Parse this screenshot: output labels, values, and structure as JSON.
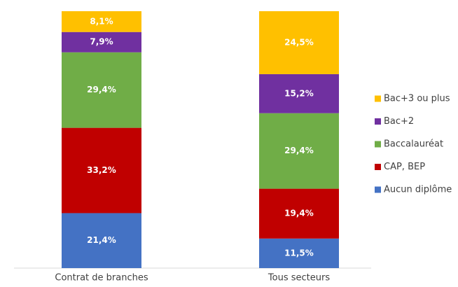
{
  "chart_data": {
    "type": "stacked_bar",
    "categories": [
      "Contrat de branches",
      "Tous secteurs"
    ],
    "series": [
      {
        "name": "Aucun diplôme",
        "color": "#4472c4",
        "values": [
          21.4,
          11.5
        ],
        "value_labels": [
          "21,4%",
          "11,5%"
        ]
      },
      {
        "name": "CAP, BEP",
        "color": "#c00000",
        "values": [
          33.2,
          19.4
        ],
        "value_labels": [
          "33,2%",
          "19,4%"
        ]
      },
      {
        "name": "Baccalauréat",
        "color": "#70ad47",
        "values": [
          29.4,
          29.4
        ],
        "value_labels": [
          "29,4%",
          "29,4%"
        ]
      },
      {
        "name": "Bac+2",
        "color": "#7030a0",
        "values": [
          7.9,
          15.2
        ],
        "value_labels": [
          "7,9%",
          "15,2%"
        ]
      },
      {
        "name": "Bac+3 ou plus",
        "color": "#ffc000",
        "values": [
          8.1,
          24.5
        ],
        "value_labels": [
          "8,1%",
          "24,5%"
        ]
      }
    ],
    "legend": "right"
  }
}
